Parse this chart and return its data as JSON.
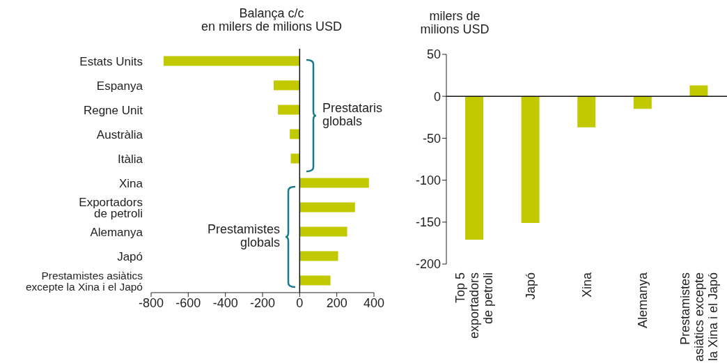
{
  "chart_data": [
    {
      "type": "bar",
      "orientation": "horizontal",
      "title": "Balança c/c\nen milers de milions USD",
      "categories": [
        "Estats Units",
        "Espanya",
        "Regne Unit",
        "Austràlia",
        "Itàlia",
        "Xina",
        "Exportadors\nde petroli",
        "Alemanya",
        "Japó",
        "Prestamistes asiàtics\nexcepte la Xina i el Japó"
      ],
      "values": [
        -733,
        -140,
        -117,
        -53,
        -48,
        373,
        298,
        256,
        207,
        166
      ],
      "color": "#c2c900",
      "xlim": [
        -800,
        400
      ],
      "xticks": [
        -800,
        -600,
        -400,
        -200,
        0,
        200,
        400
      ],
      "annotations": [
        "Prestataris\nglobals",
        "Prestamistes\nglobals"
      ]
    },
    {
      "type": "bar",
      "ylabel": "milers de\nmilions USD",
      "categories": [
        "Top 5\nexportadors\nde petroli",
        "Japó",
        "Xina",
        "Alemanya",
        "Prestamistes\nasiàtics excepte\nla Xina i el Japó"
      ],
      "values": [
        -171,
        -151,
        -37,
        -15,
        13
      ],
      "color": "#c2c900",
      "ylim": [
        -200,
        50
      ],
      "yticks": [
        -200,
        -150,
        -100,
        -50,
        0,
        50
      ]
    }
  ]
}
